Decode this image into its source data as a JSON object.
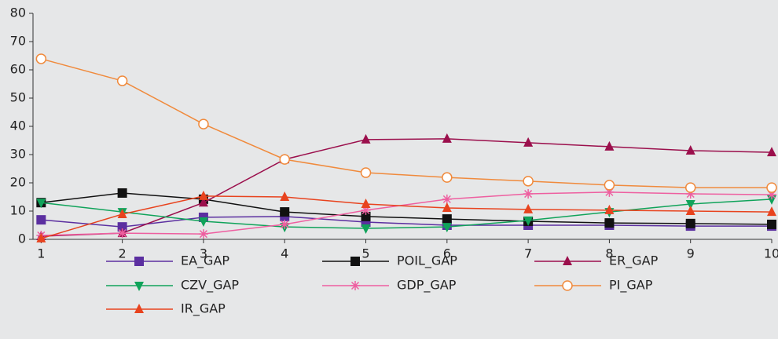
{
  "chart_data": {
    "type": "line",
    "x": [
      1,
      2,
      3,
      4,
      5,
      6,
      7,
      8,
      9,
      10
    ],
    "xlim": [
      0.9,
      10
    ],
    "xticks": [
      1,
      2,
      3,
      4,
      5,
      6,
      7,
      8,
      9,
      10
    ],
    "ylim": [
      0,
      80
    ],
    "yticks": [
      0,
      10,
      20,
      30,
      40,
      50,
      60,
      70,
      80
    ],
    "grid": false,
    "legend": "bottom",
    "series": [
      {
        "name": "EA_GAP",
        "color": "#5b2fa0",
        "marker": "square",
        "values": [
          6.9,
          4.4,
          7.8,
          8.1,
          6.1,
          5,
          5,
          5,
          4.7,
          4.7
        ]
      },
      {
        "name": "POIL_GAP",
        "color": "#111111",
        "marker": "square",
        "values": [
          13,
          16.4,
          14.2,
          9.7,
          8.1,
          7.2,
          6.4,
          5.8,
          5.6,
          5.3
        ]
      },
      {
        "name": "ER_GAP",
        "color": "#9b0f4c",
        "marker": "triangle",
        "values": [
          1.1,
          2.2,
          13,
          28.3,
          35.3,
          35.6,
          34.2,
          32.8,
          31.4,
          30.8
        ]
      },
      {
        "name": "CZV_GAP",
        "color": "#10a35a",
        "marker": "triangle-down",
        "values": [
          13,
          9.7,
          6.4,
          4.4,
          3.9,
          4.4,
          6.7,
          9.7,
          12.5,
          14.2
        ]
      },
      {
        "name": "GDP_GAP",
        "color": "#ee5fa0",
        "marker": "star",
        "values": [
          1.4,
          2.2,
          1.9,
          5.3,
          10.3,
          14.2,
          16.1,
          16.7,
          16.1,
          15.8
        ]
      },
      {
        "name": "PI_GAP",
        "color": "#f08a3c",
        "marker": "circle",
        "values": [
          63.9,
          56.1,
          40.8,
          28.3,
          23.6,
          21.9,
          20.6,
          19.2,
          18.3,
          18.3
        ]
      },
      {
        "name": "IR_GAP",
        "color": "#e8431e",
        "marker": "triangle",
        "values": [
          0.3,
          8.9,
          15.3,
          15,
          12.5,
          11.1,
          10.6,
          10.3,
          10,
          9.7
        ]
      }
    ]
  }
}
